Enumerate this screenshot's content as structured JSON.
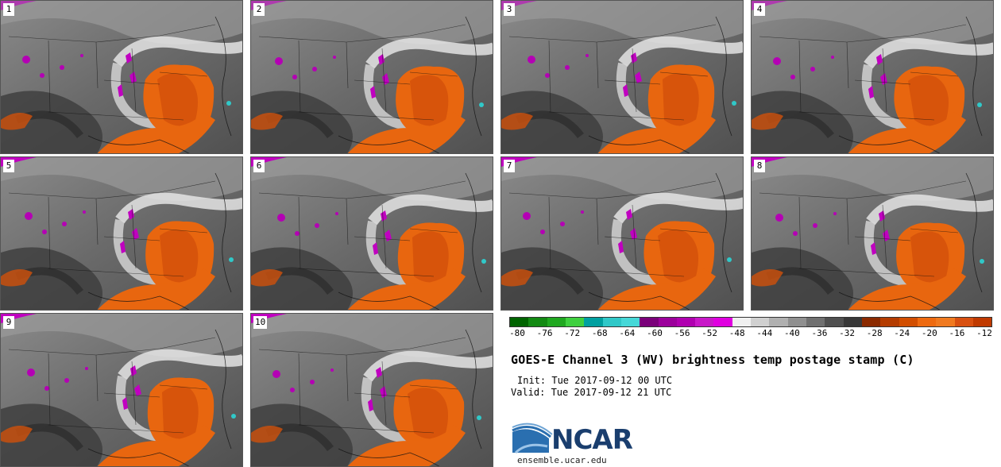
{
  "panels": [
    {
      "label": "1"
    },
    {
      "label": "2"
    },
    {
      "label": "3"
    },
    {
      "label": "4"
    },
    {
      "label": "5"
    },
    {
      "label": "6"
    },
    {
      "label": "7"
    },
    {
      "label": "8"
    },
    {
      "label": "9"
    },
    {
      "label": "10"
    }
  ],
  "colorbar": {
    "ticks": [
      "-80",
      "-76",
      "-72",
      "-68",
      "-64",
      "-60",
      "-56",
      "-52",
      "-48",
      "-44",
      "-40",
      "-36",
      "-32",
      "-28",
      "-24",
      "-20",
      "-16",
      "-12"
    ],
    "colors": [
      "#006400",
      "#138a13",
      "#20a820",
      "#3fd03f",
      "#00a0a0",
      "#30c8c8",
      "#46d8d8",
      "#7a007a",
      "#9c009c",
      "#b000b0",
      "#c818c8",
      "#e000e0",
      "#f0f0f0",
      "#d0d0d0",
      "#b0b0b0",
      "#909090",
      "#707070",
      "#505050",
      "#383838",
      "#8b2a00",
      "#b43c00",
      "#d24e00",
      "#ee6a10",
      "#f07a20",
      "#d85010",
      "#c03a00"
    ]
  },
  "title": "GOES-E Channel 3 (WV) brightness temp postage stamp (C)",
  "init_line": "Init: Tue 2017-09-12 00 UTC",
  "valid_line": "Valid: Tue 2017-09-12 21 UTC",
  "logo": {
    "text": "NCAR",
    "color": "#1a3e6e",
    "accent": "#2a6fb0"
  },
  "site": "ensemble.ucar.edu"
}
